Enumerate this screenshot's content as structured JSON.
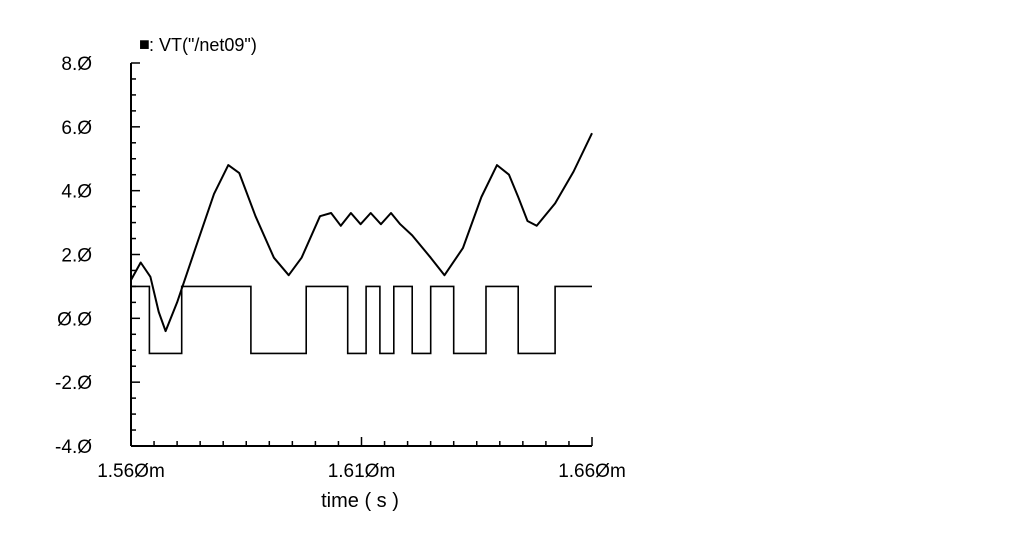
{
  "chart_data": {
    "type": "line",
    "title": "",
    "legend": {
      "marker": "■",
      "text": ": VT(\"/net09\")",
      "position": "top-left"
    },
    "xlabel": "time ( s )",
    "ylabel": "",
    "xlim": [
      1.56,
      1.66
    ],
    "ylim": [
      -4.0,
      8.0
    ],
    "x_tick_labels": [
      {
        "x": 1.56,
        "label": "1.56Øm"
      },
      {
        "x": 1.61,
        "label": "1.61Øm"
      },
      {
        "x": 1.66,
        "label": "1.66Øm"
      }
    ],
    "y_tick_labels": [
      {
        "y": 8.0,
        "label": "8.Ø"
      },
      {
        "y": 6.0,
        "label": "6.Ø"
      },
      {
        "y": 4.0,
        "label": "4.Ø"
      },
      {
        "y": 2.0,
        "label": "2.Ø"
      },
      {
        "y": 0.0,
        "label": "Ø.Ø"
      },
      {
        "y": -2.0,
        "label": "-2.Ø"
      },
      {
        "y": -4.0,
        "label": "-4.Ø"
      }
    ],
    "grid": false,
    "series": [
      {
        "name": "VT(\"/net09\")",
        "kind": "analog",
        "points": [
          [
            1.56,
            1.2
          ],
          [
            1.5621,
            1.75
          ],
          [
            1.5642,
            1.3
          ],
          [
            1.566,
            0.2
          ],
          [
            1.5675,
            -0.4
          ],
          [
            1.57,
            0.5
          ],
          [
            1.574,
            2.2
          ],
          [
            1.578,
            3.9
          ],
          [
            1.5811,
            4.8
          ],
          [
            1.5835,
            4.55
          ],
          [
            1.587,
            3.2
          ],
          [
            1.591,
            1.9
          ],
          [
            1.5942,
            1.35
          ],
          [
            1.597,
            1.9
          ],
          [
            1.601,
            3.2
          ],
          [
            1.6034,
            3.3
          ],
          [
            1.6055,
            2.9
          ],
          [
            1.6077,
            3.3
          ],
          [
            1.6098,
            2.95
          ],
          [
            1.612,
            3.3
          ],
          [
            1.6142,
            2.95
          ],
          [
            1.6164,
            3.3
          ],
          [
            1.6184,
            2.95
          ],
          [
            1.621,
            2.6
          ],
          [
            1.625,
            1.9
          ],
          [
            1.628,
            1.35
          ],
          [
            1.632,
            2.2
          ],
          [
            1.636,
            3.8
          ],
          [
            1.6394,
            4.8
          ],
          [
            1.642,
            4.5
          ],
          [
            1.644,
            3.8
          ],
          [
            1.646,
            3.05
          ],
          [
            1.648,
            2.9
          ],
          [
            1.652,
            3.6
          ],
          [
            1.656,
            4.6
          ],
          [
            1.66,
            5.8
          ]
        ]
      },
      {
        "name": "",
        "kind": "digital",
        "levels": {
          "high": 1.0,
          "low": -1.1
        },
        "steps": [
          [
            1.56,
            1.0
          ],
          [
            1.564,
            -1.1
          ],
          [
            1.571,
            1.0
          ],
          [
            1.586,
            -1.1
          ],
          [
            1.598,
            1.0
          ],
          [
            1.607,
            -1.1
          ],
          [
            1.611,
            1.0
          ],
          [
            1.614,
            -1.1
          ],
          [
            1.617,
            1.0
          ],
          [
            1.621,
            -1.1
          ],
          [
            1.625,
            1.0
          ],
          [
            1.63,
            -1.1
          ],
          [
            1.637,
            1.0
          ],
          [
            1.644,
            -1.1
          ],
          [
            1.652,
            1.0
          ],
          [
            1.66,
            1.0
          ]
        ]
      }
    ]
  }
}
